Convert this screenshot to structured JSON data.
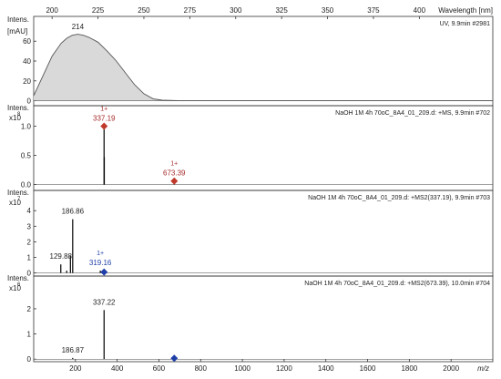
{
  "chart_data": [
    {
      "type": "area",
      "panel_id": "uv",
      "intens_label": "Intens.",
      "unit_label": "[mAU]",
      "top_axis_label": "Wavelength [nm]",
      "top_ticks": [
        200,
        225,
        250,
        275,
        300,
        325,
        350,
        375,
        400
      ],
      "xlim": [
        190,
        440
      ],
      "ylim": [
        -5,
        85
      ],
      "yticks": [
        0,
        20,
        40,
        60
      ],
      "title": "UV, 9.9min #2981",
      "peak_label": "214",
      "peak_label_x": 214,
      "peak_label_y": 72,
      "x": [
        190,
        195,
        200,
        205,
        208,
        211,
        214,
        217,
        220,
        225,
        230,
        235,
        240,
        245,
        250,
        255,
        260,
        270,
        280,
        300,
        320,
        340,
        360,
        380,
        400,
        420,
        440
      ],
      "y": [
        5,
        25,
        45,
        58,
        63,
        66,
        67,
        66,
        64,
        59,
        50,
        40,
        28,
        16,
        7,
        2,
        0.5,
        0,
        0,
        0,
        0,
        0,
        0,
        0,
        0,
        0,
        0
      ],
      "fill": "#d9d9d9",
      "line": "#555555"
    },
    {
      "type": "bar",
      "panel_id": "ms1",
      "intens_label": "Intens.",
      "exp_base": "x10",
      "exp_power": "8",
      "xlim": [
        0,
        2200
      ],
      "ylim": [
        -0.1,
        1.35
      ],
      "yticks": [
        0.0,
        0.5,
        1.0
      ],
      "ytick_labels": [
        "0.0",
        "0.5",
        "1.0"
      ],
      "title": "NaOH 1M 4h 70oC_8A4_01_209.d: +MS, 9.9min #702",
      "peaks": [
        {
          "x": 337.19,
          "y": 1.0
        },
        {
          "x": 338.2,
          "y": 0.47
        },
        {
          "x": 673.39,
          "y": 0.06
        }
      ],
      "labels": [
        {
          "charge": "1+",
          "value": "337.19",
          "x": 337.19,
          "y": 1.0
        },
        {
          "charge": "1+",
          "value": "673.39",
          "x": 673.39,
          "y": 0.06
        }
      ],
      "marker_color": "#c0392b",
      "label_color": "#a52a2a"
    },
    {
      "type": "bar",
      "panel_id": "ms2a",
      "intens_label": "Intens.",
      "exp_base": "x10",
      "exp_power": "7",
      "xlim": [
        0,
        2200
      ],
      "ylim": [
        -0.2,
        5.3
      ],
      "yticks": [
        0,
        1,
        2,
        3,
        4
      ],
      "ytick_labels": [
        "0",
        "1",
        "2",
        "3",
        "4"
      ],
      "title": "NaOH 1M 4h 70oC_8A4_01_209.d: +MS2(337.19), 9.9min #703",
      "peaks": [
        {
          "x": 129.88,
          "y": 0.55
        },
        {
          "x": 158.0,
          "y": 0.15
        },
        {
          "x": 176.0,
          "y": 1.1
        },
        {
          "x": 186.86,
          "y": 3.45
        },
        {
          "x": 319.16,
          "y": 0.15
        }
      ],
      "labels": [
        {
          "charge": "",
          "value": "186.86",
          "x": 186.86,
          "y": 3.45,
          "color": "#222222"
        },
        {
          "charge": "",
          "value": "129.88",
          "x": 129.88,
          "y": 0.55,
          "color": "#222222"
        },
        {
          "charge": "1+",
          "value": "319.16",
          "x": 319.16,
          "y": 0.15,
          "color": "#1f3fa8"
        }
      ],
      "marker_x": 337.19,
      "marker_color": "#1f3fa8"
    },
    {
      "type": "bar",
      "panel_id": "ms2b",
      "intens_label": "Intens.",
      "exp_base": "x10",
      "exp_power": "6",
      "xlim": [
        0,
        2200
      ],
      "ylim": [
        -0.1,
        3.3
      ],
      "yticks": [
        0,
        1,
        2
      ],
      "ytick_labels": [
        "0",
        "1",
        "2"
      ],
      "title": "NaOH 1M 4h 70oC_8A4_01_209.d: +MS2(673.39), 10.0min #704",
      "peaks": [
        {
          "x": 186.87,
          "y": 0.05
        },
        {
          "x": 337.22,
          "y": 1.95
        }
      ],
      "labels": [
        {
          "charge": "",
          "value": "337.22",
          "x": 337.22,
          "y": 1.95,
          "color": "#222222"
        },
        {
          "charge": "",
          "value": "186.87",
          "x": 186.87,
          "y": 0.05,
          "color": "#222222"
        }
      ],
      "marker_x": 673.39,
      "marker_color": "#1f3fa8",
      "bottom_ticks": [
        200,
        400,
        600,
        800,
        1000,
        1200,
        1400,
        1600,
        1800,
        2000
      ],
      "bottom_axis_label": "m/z"
    }
  ]
}
